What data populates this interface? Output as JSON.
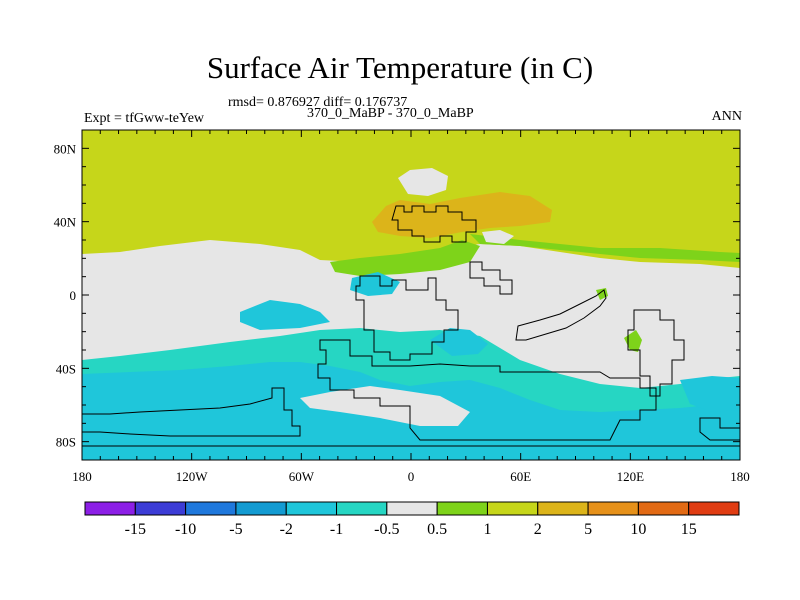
{
  "figure": {
    "title": "Surface Air Temperature (in C)",
    "stats": "rmsd= 0.876927 diff= 0.176737",
    "left_label": "Expt = tfGww-teYew",
    "center_label": "370_0_MaBP - 370_0_MaBP",
    "right_label": "ANN"
  },
  "axes": {
    "x_ticks": [
      "180",
      "120W",
      "60W",
      "0",
      "60E",
      "120E",
      "180"
    ],
    "x_values": [
      -180,
      -120,
      -60,
      0,
      60,
      120,
      180
    ],
    "y_ticks": [
      "80N",
      "40N",
      "0",
      "40S",
      "80S"
    ],
    "y_values": [
      80,
      40,
      0,
      -40,
      -80
    ],
    "lon_range": [
      -180,
      180
    ],
    "lat_range": [
      -90,
      90
    ]
  },
  "colorbar": {
    "labels": [
      "-15",
      "-10",
      "-5",
      "-2",
      "-1",
      "-0.5",
      "0.5",
      "1",
      "2",
      "5",
      "10",
      "15"
    ],
    "colors": [
      "#8c1fe6",
      "#3c3cd6",
      "#1f78dc",
      "#139bd2",
      "#1fc6da",
      "#26d6c3",
      "#e6e6e6",
      "#7ed31a",
      "#c6d61a",
      "#dcb41a",
      "#e6911a",
      "#e26a14",
      "#e03c12"
    ]
  },
  "colors": {
    "land_outline": "#000000",
    "neutral": "#e6e6e6",
    "cyan": "#1fc6da",
    "teal": "#26d6c3",
    "yellow_green": "#c6d61a",
    "green": "#7ed31a",
    "orange": "#dcb41a"
  }
}
